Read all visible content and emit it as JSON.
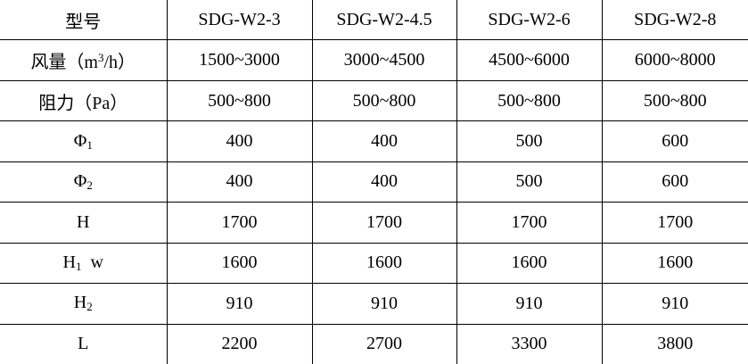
{
  "header": {
    "label": "型号",
    "models": [
      "SDG-W2-3",
      "SDG-W2-4.5",
      "SDG-W2-6",
      "SDG-W2-8"
    ]
  },
  "rows": [
    {
      "label": {
        "pre": "风量（m",
        "sup": "3",
        "sub": "",
        "post": "/h）"
      },
      "values": [
        "1500~3000",
        "3000~4500",
        "4500~6000",
        "6000~8000"
      ]
    },
    {
      "label": {
        "pre": "阻力（Pa）",
        "sup": "",
        "sub": "",
        "post": ""
      },
      "values": [
        "500~800",
        "500~800",
        "500~800",
        "500~800"
      ]
    },
    {
      "label": {
        "pre": "Φ",
        "sup": "",
        "sub": "1",
        "post": ""
      },
      "values": [
        "400",
        "400",
        "500",
        "600"
      ]
    },
    {
      "label": {
        "pre": "Φ",
        "sup": "",
        "sub": "2",
        "post": ""
      },
      "values": [
        "400",
        "400",
        "500",
        "600"
      ]
    },
    {
      "label": {
        "pre": "H",
        "sup": "",
        "sub": "",
        "post": ""
      },
      "values": [
        "1700",
        "1700",
        "1700",
        "1700"
      ]
    },
    {
      "label": {
        "pre": "H",
        "sup": "",
        "sub": "1",
        "post": "  w"
      },
      "values": [
        "1600",
        "1600",
        "1600",
        "1600"
      ]
    },
    {
      "label": {
        "pre": "H",
        "sup": "",
        "sub": "2",
        "post": ""
      },
      "values": [
        "910",
        "910",
        "910",
        "910"
      ]
    },
    {
      "label": {
        "pre": "L",
        "sup": "",
        "sub": "",
        "post": ""
      },
      "values": [
        "2200",
        "2700",
        "3300",
        "3800"
      ]
    }
  ]
}
